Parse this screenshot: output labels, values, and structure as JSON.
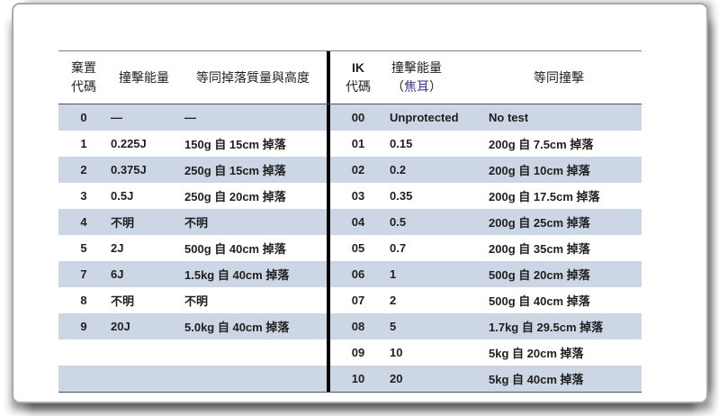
{
  "colors": {
    "row_shade": "#cdd6e5",
    "center_divider": "#000000",
    "rule_lines": "#4c565f",
    "frame_border": "#a9a9a9",
    "joule_accent": "#3a3a8c",
    "text": "#1f1f1f"
  },
  "left_table": {
    "header": {
      "code_line1": "棄置",
      "code_line2": "代碼",
      "energy": "撞擊能量",
      "equiv": "等同掉落質量與高度"
    },
    "rows": [
      {
        "code": "0",
        "energy": "—",
        "equiv": "—"
      },
      {
        "code": "1",
        "energy": "0.225J",
        "equiv": "150g 自 15cm 掉落"
      },
      {
        "code": "2",
        "energy": "0.375J",
        "equiv": "250g 自 15cm 掉落"
      },
      {
        "code": "3",
        "energy": "0.5J",
        "equiv": "250g 自 20cm 掉落"
      },
      {
        "code": "4",
        "energy": "不明",
        "equiv": "不明"
      },
      {
        "code": "5",
        "energy": "2J",
        "equiv": "500g 自 40cm 掉落"
      },
      {
        "code": "7",
        "energy": "6J",
        "equiv": "1.5kg 自 40cm 掉落"
      },
      {
        "code": "8",
        "energy": "不明",
        "equiv": "不明"
      },
      {
        "code": "9",
        "energy": "20J",
        "equiv": "5.0kg 自 40cm 掉落"
      },
      {
        "code": "",
        "energy": "",
        "equiv": ""
      },
      {
        "code": "",
        "energy": "",
        "equiv": ""
      }
    ]
  },
  "right_table": {
    "header": {
      "code_line1": "IK",
      "code_line2": "代碼",
      "energy_line1": "撞擊能量",
      "energy_line2_open": "（",
      "energy_line2_joule": "焦耳",
      "energy_line2_close": "）",
      "equiv": "等同撞擊"
    },
    "rows": [
      {
        "code": "00",
        "energy": "Unprotected",
        "equiv": "No test"
      },
      {
        "code": "01",
        "energy": "0.15",
        "equiv": "200g 自 7.5cm 掉落"
      },
      {
        "code": "02",
        "energy": "0.2",
        "equiv": "200g 自 10cm 掉落"
      },
      {
        "code": "03",
        "energy": "0.35",
        "equiv": "200g 自 17.5cm 掉落"
      },
      {
        "code": "04",
        "energy": "0.5",
        "equiv": "200g 自 25cm 掉落"
      },
      {
        "code": "05",
        "energy": "0.7",
        "equiv": "200g 自 35cm 掉落"
      },
      {
        "code": "06",
        "energy": "1",
        "equiv": "500g 自 20cm 掉落"
      },
      {
        "code": "07",
        "energy": "2",
        "equiv": "500g 自 40cm 掉落"
      },
      {
        "code": "08",
        "energy": "5",
        "equiv": "1.7kg 自 29.5cm 掉落"
      },
      {
        "code": "09",
        "energy": "10",
        "equiv": "5kg 自 20cm 掉落"
      },
      {
        "code": "10",
        "energy": "20",
        "equiv": "5kg 自 40cm 掉落"
      }
    ]
  }
}
